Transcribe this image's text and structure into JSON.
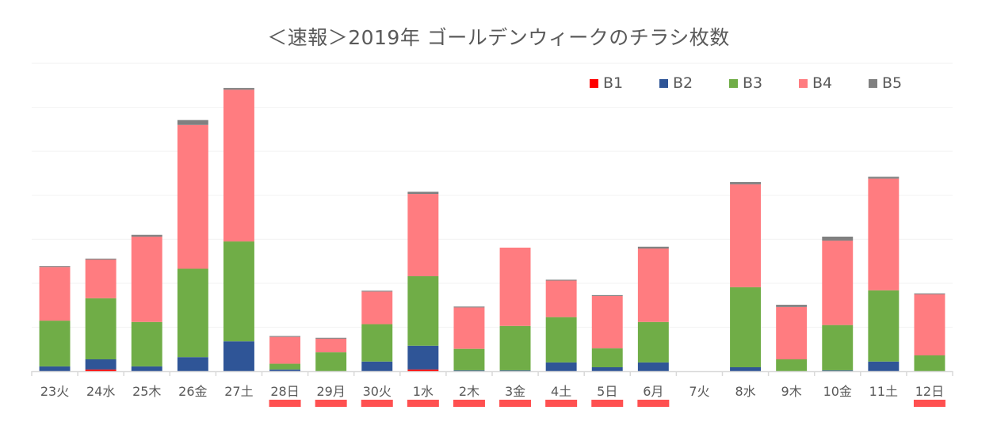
{
  "chart_data": {
    "type": "bar",
    "stacked": true,
    "title": "＜速報＞2019年  ゴールデンウィークのチラシ枚数",
    "xlabel": "",
    "ylabel": "",
    "y_axis_labels_shown": false,
    "y_units_note": "relative values; one gridline interval = 100",
    "ylim": [
      0,
      700
    ],
    "gridlines": [
      100,
      200,
      300,
      400,
      500,
      600,
      700
    ],
    "grid": true,
    "legend_position": "top-right",
    "categories": [
      "23火",
      "24水",
      "25木",
      "26金",
      "27土",
      "28日",
      "29月",
      "30火",
      "1水",
      "2木",
      "3金",
      "4土",
      "5日",
      "6月",
      "7火",
      "8水",
      "9木",
      "10金",
      "11土",
      "12日"
    ],
    "holiday_markers": [
      false,
      false,
      false,
      false,
      false,
      true,
      true,
      true,
      true,
      true,
      true,
      true,
      true,
      true,
      false,
      false,
      false,
      false,
      false,
      true
    ],
    "series": [
      {
        "name": "B1",
        "color": "#ff0000",
        "values": [
          0,
          4,
          0,
          0,
          0,
          0,
          0,
          0,
          4,
          0,
          0,
          0,
          0,
          0,
          0,
          0,
          0,
          0,
          0,
          0
        ]
      },
      {
        "name": "B2",
        "color": "#2f5597",
        "values": [
          11,
          23,
          11,
          32,
          68,
          4,
          0,
          22,
          54,
          2,
          2,
          20,
          9,
          20,
          0,
          9,
          0,
          2,
          22,
          0
        ]
      },
      {
        "name": "B3",
        "color": "#70ad47",
        "values": [
          104,
          139,
          101,
          201,
          227,
          13,
          43,
          85,
          158,
          49,
          101,
          103,
          43,
          92,
          0,
          182,
          27,
          103,
          162,
          36
        ]
      },
      {
        "name": "B4",
        "color": "#ff7c80",
        "values": [
          122,
          88,
          194,
          327,
          345,
          61,
          31,
          74,
          187,
          94,
          178,
          83,
          119,
          167,
          0,
          234,
          119,
          192,
          254,
          139
        ]
      },
      {
        "name": "B5",
        "color": "#808080",
        "values": [
          2,
          2,
          4,
          11,
          4,
          2,
          2,
          2,
          5,
          2,
          0,
          2,
          2,
          4,
          0,
          5,
          5,
          9,
          4,
          2
        ]
      }
    ]
  },
  "colors": {
    "holiday_marker": "#ff5050",
    "gridline": "#f2f2f2",
    "axis": "#d9d9d9",
    "text": "#595959"
  }
}
